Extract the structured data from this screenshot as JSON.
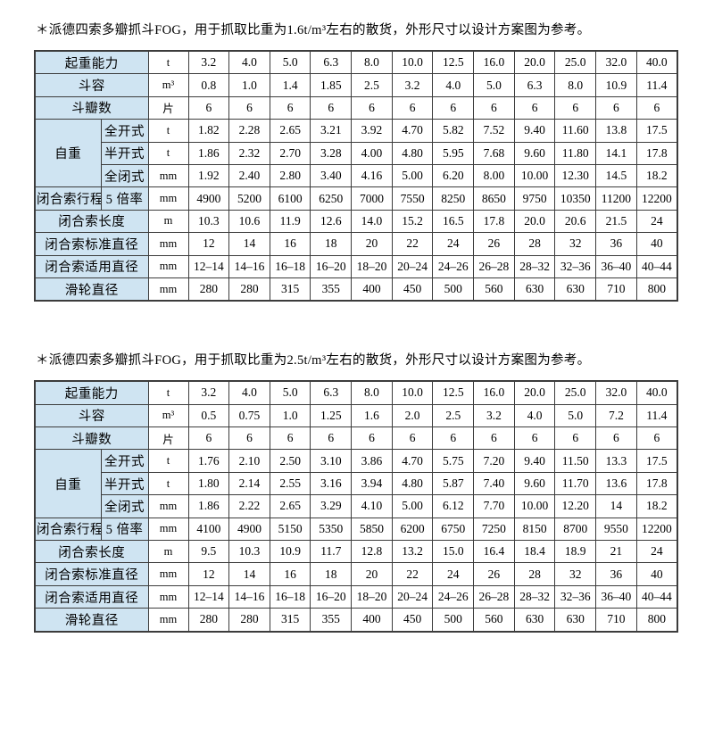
{
  "colors": {
    "label_bg": "#cfe4f2",
    "border": "#3c3c3c",
    "text": "#000000",
    "page_bg": "#ffffff"
  },
  "tables": [
    {
      "title": "＊派德四索多瓣抓斗FOG，用于抓取比重为1.6t/m³左右的散货，外形尺寸以设计方案图为参考。",
      "rows": [
        {
          "label": "起重能力",
          "unit": "t",
          "values": [
            "3.2",
            "4.0",
            "5.0",
            "6.3",
            "8.0",
            "10.0",
            "12.5",
            "16.0",
            "20.0",
            "25.0",
            "32.0",
            "40.0"
          ]
        },
        {
          "label": "斗容",
          "unit": "m³",
          "values": [
            "0.8",
            "1.0",
            "1.4",
            "1.85",
            "2.5",
            "3.2",
            "4.0",
            "5.0",
            "6.3",
            "8.0",
            "10.9",
            "11.4"
          ]
        },
        {
          "label": "斗瓣数",
          "unit": "片",
          "values": [
            "6",
            "6",
            "6",
            "6",
            "6",
            "6",
            "6",
            "6",
            "6",
            "6",
            "6",
            "6"
          ]
        },
        {
          "label": "自重",
          "rowspan": 3,
          "sublabel": "全开式",
          "unit": "t",
          "values": [
            "1.82",
            "2.28",
            "2.65",
            "3.21",
            "3.92",
            "4.70",
            "5.82",
            "7.52",
            "9.40",
            "11.60",
            "13.8",
            "17.5"
          ]
        },
        {
          "sublabel": "半开式",
          "unit": "t",
          "values": [
            "1.86",
            "2.32",
            "2.70",
            "3.28",
            "4.00",
            "4.80",
            "5.95",
            "7.68",
            "9.60",
            "11.80",
            "14.1",
            "17.8"
          ]
        },
        {
          "sublabel": "全闭式",
          "unit": "mm",
          "values": [
            "1.92",
            "2.40",
            "2.80",
            "3.40",
            "4.16",
            "5.00",
            "6.20",
            "8.00",
            "10.00",
            "12.30",
            "14.5",
            "18.2"
          ]
        },
        {
          "label": "闭合索行程",
          "sublabel": "5 倍率",
          "unit": "mm",
          "values": [
            "4900",
            "5200",
            "6100",
            "6250",
            "7000",
            "7550",
            "8250",
            "8650",
            "9750",
            "10350",
            "11200",
            "12200"
          ]
        },
        {
          "label": "闭合索长度",
          "unit": "m",
          "values": [
            "10.3",
            "10.6",
            "11.9",
            "12.6",
            "14.0",
            "15.2",
            "16.5",
            "17.8",
            "20.0",
            "20.6",
            "21.5",
            "24"
          ]
        },
        {
          "label": "闭合索标准直径",
          "unit": "mm",
          "values": [
            "12",
            "14",
            "16",
            "18",
            "20",
            "22",
            "24",
            "26",
            "28",
            "32",
            "36",
            "40"
          ]
        },
        {
          "label": "闭合索适用直径",
          "unit": "mm",
          "values": [
            "12–14",
            "14–16",
            "16–18",
            "16–20",
            "18–20",
            "20–24",
            "24–26",
            "26–28",
            "28–32",
            "32–36",
            "36–40",
            "40–44"
          ]
        },
        {
          "label": "滑轮直径",
          "unit": "mm",
          "values": [
            "280",
            "280",
            "315",
            "355",
            "400",
            "450",
            "500",
            "560",
            "630",
            "630",
            "710",
            "800"
          ]
        }
      ]
    },
    {
      "title": "＊派德四索多瓣抓斗FOG，用于抓取比重为2.5t/m³左右的散货，外形尺寸以设计方案图为参考。",
      "rows": [
        {
          "label": "起重能力",
          "unit": "t",
          "values": [
            "3.2",
            "4.0",
            "5.0",
            "6.3",
            "8.0",
            "10.0",
            "12.5",
            "16.0",
            "20.0",
            "25.0",
            "32.0",
            "40.0"
          ]
        },
        {
          "label": "斗容",
          "unit": "m³",
          "values": [
            "0.5",
            "0.75",
            "1.0",
            "1.25",
            "1.6",
            "2.0",
            "2.5",
            "3.2",
            "4.0",
            "5.0",
            "7.2",
            "11.4"
          ]
        },
        {
          "label": "斗瓣数",
          "unit": "片",
          "values": [
            "6",
            "6",
            "6",
            "6",
            "6",
            "6",
            "6",
            "6",
            "6",
            "6",
            "6",
            "6"
          ]
        },
        {
          "label": "自重",
          "rowspan": 3,
          "sublabel": "全开式",
          "unit": "t",
          "values": [
            "1.76",
            "2.10",
            "2.50",
            "3.10",
            "3.86",
            "4.70",
            "5.75",
            "7.20",
            "9.40",
            "11.50",
            "13.3",
            "17.5"
          ]
        },
        {
          "sublabel": "半开式",
          "unit": "t",
          "values": [
            "1.80",
            "2.14",
            "2.55",
            "3.16",
            "3.94",
            "4.80",
            "5.87",
            "7.40",
            "9.60",
            "11.70",
            "13.6",
            "17.8"
          ]
        },
        {
          "sublabel": "全闭式",
          "unit": "mm",
          "values": [
            "1.86",
            "2.22",
            "2.65",
            "3.29",
            "4.10",
            "5.00",
            "6.12",
            "7.70",
            "10.00",
            "12.20",
            "14",
            "18.2"
          ]
        },
        {
          "label": "闭合索行程",
          "sublabel": "5 倍率",
          "unit": "mm",
          "values": [
            "4100",
            "4900",
            "5150",
            "5350",
            "5850",
            "6200",
            "6750",
            "7250",
            "8150",
            "8700",
            "9550",
            "12200"
          ]
        },
        {
          "label": "闭合索长度",
          "unit": "m",
          "values": [
            "9.5",
            "10.3",
            "10.9",
            "11.7",
            "12.8",
            "13.2",
            "15.0",
            "16.4",
            "18.4",
            "18.9",
            "21",
            "24"
          ]
        },
        {
          "label": "闭合索标准直径",
          "unit": "mm",
          "values": [
            "12",
            "14",
            "16",
            "18",
            "20",
            "22",
            "24",
            "26",
            "28",
            "32",
            "36",
            "40"
          ]
        },
        {
          "label": "闭合索适用直径",
          "unit": "mm",
          "values": [
            "12–14",
            "14–16",
            "16–18",
            "16–20",
            "18–20",
            "20–24",
            "24–26",
            "26–28",
            "28–32",
            "32–36",
            "36–40",
            "40–44"
          ]
        },
        {
          "label": "滑轮直径",
          "unit": "mm",
          "values": [
            "280",
            "280",
            "315",
            "355",
            "400",
            "450",
            "500",
            "560",
            "630",
            "630",
            "710",
            "800"
          ]
        }
      ]
    }
  ]
}
